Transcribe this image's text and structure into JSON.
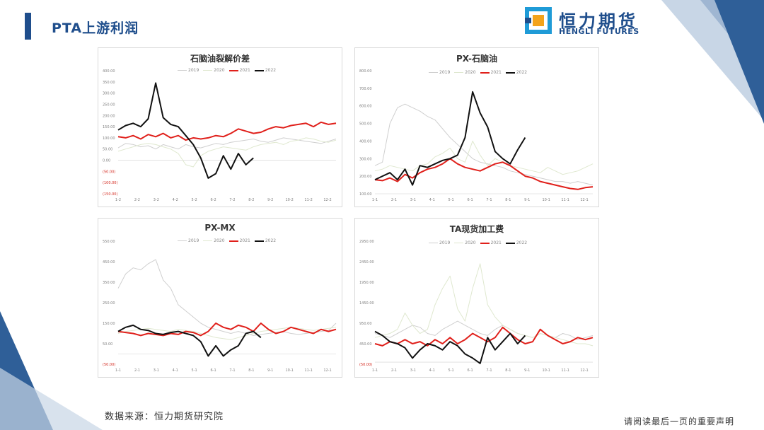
{
  "header": {
    "title": "PTA上游利润"
  },
  "logo": {
    "cn": "恒力期货",
    "en": "HENGLI FUTURES"
  },
  "footer": {
    "source": "数据来源：恒力期货研究院",
    "disclaimer": "请阅读最后一页的重要声明"
  },
  "colors": {
    "brand": "#1f4e8c",
    "s2019": "#cfcfcf",
    "s2020": "#dfe8cf",
    "s2021": "#e0201b",
    "s2022": "#111111",
    "neg_tick": "#d42a20"
  },
  "chart_data": [
    {
      "type": "line",
      "title": "石脑油裂解价差",
      "x_ticks": [
        "1-2",
        "2-2",
        "3-2",
        "4-2",
        "5-2",
        "6-2",
        "7-2",
        "8-2",
        "9-2",
        "10-2",
        "11-2",
        "12-2"
      ],
      "y_ticks": [
        "400.00",
        "350.00",
        "300.00",
        "250.00",
        "200.00",
        "150.00",
        "100.00",
        "50.00",
        "0.00",
        "(50.00)",
        "(100.00)",
        "(150.00)"
      ],
      "ylim": [
        -150,
        400
      ],
      "series": [
        {
          "name": "2019",
          "values": [
            55,
            75,
            70,
            60,
            65,
            50,
            70,
            60,
            50,
            70,
            60,
            55,
            65,
            75,
            70,
            80,
            85,
            90,
            95,
            85,
            80,
            90,
            100,
            95,
            90,
            85,
            80,
            75,
            85,
            95
          ]
        },
        {
          "name": "2020",
          "values": [
            40,
            50,
            60,
            70,
            75,
            70,
            60,
            50,
            30,
            -20,
            -30,
            20,
            40,
            50,
            60,
            55,
            50,
            45,
            60,
            70,
            75,
            80,
            70,
            85,
            90,
            100,
            95,
            85,
            80,
            90
          ]
        },
        {
          "name": "2021",
          "values": [
            105,
            100,
            110,
            95,
            115,
            105,
            120,
            100,
            110,
            90,
            100,
            95,
            100,
            110,
            105,
            120,
            140,
            130,
            120,
            125,
            140,
            150,
            145,
            155,
            160,
            165,
            150,
            170,
            160,
            165
          ]
        },
        {
          "name": "2022",
          "values": [
            135,
            155,
            165,
            150,
            185,
            345,
            190,
            160,
            150,
            110,
            70,
            10,
            -80,
            -60,
            20,
            -40,
            30,
            -20,
            10,
            null,
            null,
            null,
            null,
            null,
            null,
            null,
            null,
            null,
            null,
            null
          ]
        }
      ]
    },
    {
      "type": "line",
      "title": "PX-石脑油",
      "x_ticks": [
        "1-1",
        "2-1",
        "3-1",
        "4-1",
        "5-1",
        "6-1",
        "7-1",
        "8-1",
        "9-1",
        "10-1",
        "11-1",
        "12-1"
      ],
      "y_ticks": [
        "800.00",
        "700.00",
        "600.00",
        "500.00",
        "400.00",
        "300.00",
        "200.00",
        "100.00"
      ],
      "ylim": [
        100,
        800
      ],
      "series": [
        {
          "name": "2019",
          "values": [
            260,
            280,
            500,
            590,
            610,
            590,
            570,
            540,
            520,
            470,
            420,
            380,
            340,
            300,
            280,
            270,
            260,
            250,
            230,
            220,
            210,
            200,
            190,
            180,
            170,
            170,
            160,
            170,
            160,
            150
          ]
        },
        {
          "name": "2020",
          "values": [
            230,
            240,
            260,
            250,
            240,
            230,
            260,
            270,
            310,
            330,
            360,
            300,
            280,
            400,
            320,
            260,
            300,
            280,
            260,
            250,
            240,
            230,
            220,
            250,
            230,
            210,
            220,
            230,
            250,
            270
          ]
        },
        {
          "name": "2021",
          "values": [
            180,
            175,
            190,
            170,
            210,
            190,
            220,
            240,
            250,
            270,
            300,
            270,
            250,
            240,
            230,
            250,
            270,
            280,
            260,
            230,
            200,
            190,
            170,
            160,
            150,
            140,
            130,
            125,
            135,
            140
          ]
        },
        {
          "name": "2022",
          "values": [
            180,
            200,
            220,
            180,
            240,
            150,
            260,
            250,
            270,
            290,
            300,
            320,
            420,
            680,
            560,
            480,
            340,
            300,
            270,
            350,
            420,
            null,
            null,
            null,
            null,
            null,
            null,
            null,
            null,
            null
          ]
        }
      ]
    },
    {
      "type": "line",
      "title": "PX-MX",
      "x_ticks": [
        "1-1",
        "2-1",
        "3-1",
        "4-1",
        "5-1",
        "6-1",
        "7-1",
        "8-1",
        "9-1",
        "10-1",
        "11-1",
        "12-1"
      ],
      "y_ticks": [
        "550.00",
        "450.00",
        "350.00",
        "250.00",
        "150.00",
        "50.00",
        "(50.00)"
      ],
      "ylim": [
        -50,
        550
      ],
      "series": [
        {
          "name": "2019",
          "values": [
            320,
            390,
            420,
            410,
            440,
            460,
            360,
            320,
            240,
            210,
            180,
            150,
            130,
            120,
            110,
            100,
            110,
            100,
            90,
            95,
            100,
            105,
            110,
            100,
            95,
            100,
            105,
            110,
            115,
            150
          ]
        },
        {
          "name": "2020",
          "values": [
            100,
            110,
            115,
            120,
            125,
            120,
            115,
            110,
            120,
            115,
            110,
            100,
            90,
            80,
            75,
            70,
            80,
            90,
            100,
            110,
            115,
            120,
            125,
            130,
            125,
            120,
            115,
            120,
            125,
            130
          ]
        },
        {
          "name": "2021",
          "values": [
            110,
            105,
            100,
            90,
            100,
            95,
            90,
            100,
            95,
            110,
            105,
            90,
            110,
            150,
            130,
            120,
            140,
            130,
            110,
            150,
            120,
            100,
            110,
            130,
            120,
            110,
            100,
            120,
            110,
            120
          ]
        },
        {
          "name": "2022",
          "values": [
            110,
            130,
            140,
            120,
            115,
            100,
            95,
            105,
            110,
            100,
            90,
            60,
            -10,
            40,
            -10,
            20,
            40,
            100,
            110,
            80,
            null,
            null,
            null,
            null,
            null,
            null,
            null,
            null,
            null,
            null
          ]
        }
      ]
    },
    {
      "type": "line",
      "title": "TA现货加工费",
      "x_ticks": [
        "1-1",
        "2-1",
        "3-1",
        "4-1",
        "5-1",
        "6-1",
        "7-1",
        "8-1",
        "9-1",
        "10-1",
        "11-1",
        "12-1"
      ],
      "y_ticks": [
        "2950.00",
        "2450.00",
        "1950.00",
        "1450.00",
        "950.00",
        "450.00",
        "(50.00)"
      ],
      "ylim": [
        -50,
        2950
      ],
      "series": [
        {
          "name": "2019",
          "values": [
            700,
            650,
            600,
            700,
            800,
            900,
            850,
            700,
            650,
            800,
            900,
            1000,
            900,
            800,
            700,
            650,
            800,
            900,
            800,
            700,
            650,
            600,
            700,
            650,
            600,
            700,
            650,
            550,
            600,
            650
          ]
        },
        {
          "name": "2020",
          "values": [
            600,
            650,
            700,
            800,
            1200,
            900,
            700,
            800,
            1400,
            1800,
            2100,
            1300,
            1000,
            1800,
            2400,
            1400,
            1100,
            900,
            800,
            700,
            650,
            600,
            700,
            650,
            600,
            550,
            500,
            450,
            450,
            400
          ]
        },
        {
          "name": "2021",
          "values": [
            450,
            400,
            500,
            450,
            550,
            450,
            500,
            400,
            550,
            450,
            600,
            450,
            550,
            700,
            600,
            500,
            600,
            850,
            700,
            550,
            450,
            500,
            800,
            650,
            550,
            450,
            500,
            600,
            550,
            600
          ]
        },
        {
          "name": "2022",
          "values": [
            750,
            650,
            500,
            450,
            350,
            100,
            300,
            450,
            400,
            300,
            500,
            400,
            200,
            100,
            -30,
            600,
            300,
            500,
            700,
            450,
            650,
            null,
            null,
            null,
            null,
            null,
            null,
            null,
            null,
            null
          ]
        }
      ]
    }
  ]
}
